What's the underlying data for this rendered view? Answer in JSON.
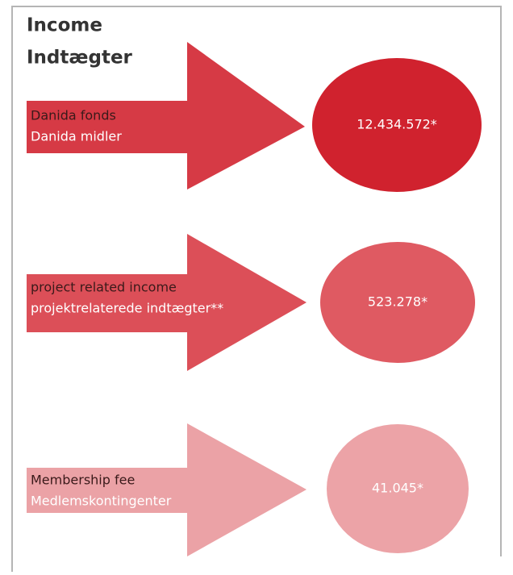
{
  "title": [
    "Income",
    "Indtægter"
  ],
  "items": [
    {
      "label_en": "Danida fonds",
      "label_da": "Danida midler",
      "value": "12.434.572*"
    },
    {
      "label_en": "project related income",
      "label_da": "projektrelaterede indtægter**",
      "value": "523.278*"
    },
    {
      "label_en": "Membership fee",
      "label_da": "Medlemskontingenter",
      "value": "41.045*"
    }
  ]
}
